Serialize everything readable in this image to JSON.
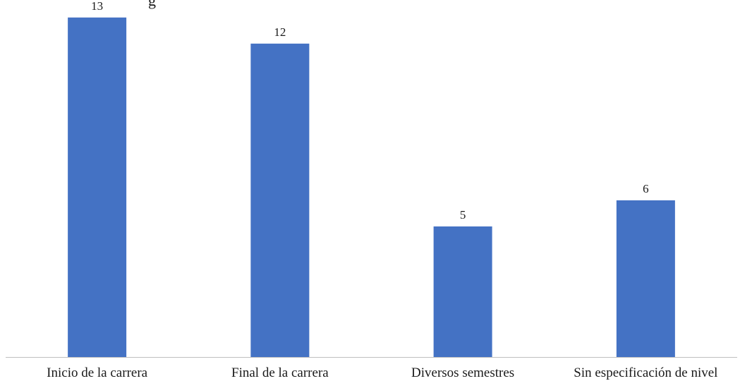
{
  "chart_data": {
    "type": "bar",
    "title_fragment": "g",
    "categories": [
      "Inicio de la carrera",
      "Final de la carrera",
      "Diversos semestres",
      "Sin especificación de nivel"
    ],
    "values": [
      13,
      12,
      5,
      6
    ],
    "data_labels": [
      "13",
      "12",
      "5",
      "6"
    ],
    "ylim": [
      0,
      13.67
    ],
    "bar_color": "#4472C4",
    "axis_color": "#BFBFBF",
    "grid": false,
    "legend": "none"
  }
}
